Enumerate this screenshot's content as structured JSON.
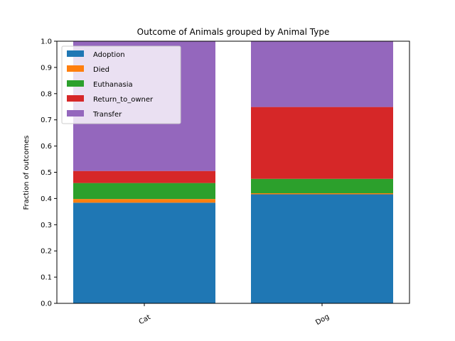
{
  "chart_data": {
    "type": "bar",
    "stacked": true,
    "title": "Outcome of Animals grouped by Animal Type",
    "xlabel": "",
    "ylabel": "Fraction of outcomes",
    "ylim": [
      0,
      1.0
    ],
    "yticks": [
      "0.0",
      "0.1",
      "0.2",
      "0.3",
      "0.4",
      "0.5",
      "0.6",
      "0.7",
      "0.8",
      "0.9",
      "1.0"
    ],
    "grid": false,
    "legend_position": "top-left",
    "categories": [
      "Cat",
      "Dog"
    ],
    "series": [
      {
        "name": "Adoption",
        "color": "#1f77b4",
        "values": [
          0.384,
          0.416
        ]
      },
      {
        "name": "Died",
        "color": "#ff7f0e",
        "values": [
          0.014,
          0.004
        ]
      },
      {
        "name": "Euthanasia",
        "color": "#2ca02c",
        "values": [
          0.061,
          0.055
        ]
      },
      {
        "name": "Return_to_owner",
        "color": "#d62728",
        "values": [
          0.046,
          0.274
        ]
      },
      {
        "name": "Transfer",
        "color": "#9467bd",
        "values": [
          0.495,
          0.251
        ]
      }
    ]
  }
}
